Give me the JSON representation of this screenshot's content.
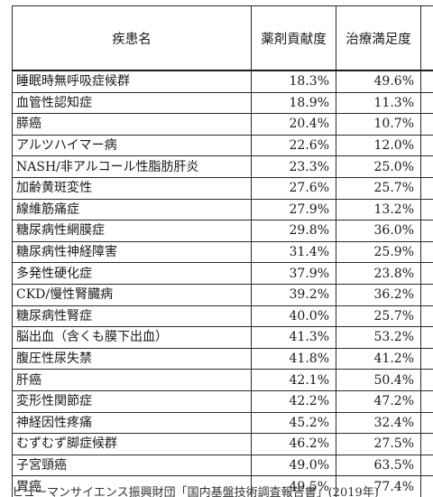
{
  "table": {
    "headers": [
      "疾患名",
      "薬剤貢献度",
      "治療満足度"
    ],
    "rows": [
      {
        "name": "睡眠時無呼吸症候群",
        "contribution": "18.3%",
        "satisfaction": "49.6%"
      },
      {
        "name": "血管性認知症",
        "contribution": "18.9%",
        "satisfaction": "11.3%"
      },
      {
        "name": "膵癌",
        "contribution": "20.4%",
        "satisfaction": "10.7%"
      },
      {
        "name": "アルツハイマー病",
        "contribution": "22.6%",
        "satisfaction": "12.0%"
      },
      {
        "name": "NASH/非アルコール性脂肪肝炎",
        "contribution": "23.3%",
        "satisfaction": "25.0%"
      },
      {
        "name": "加齢黄斑変性",
        "contribution": "27.6%",
        "satisfaction": "25.7%"
      },
      {
        "name": "線維筋痛症",
        "contribution": "27.9%",
        "satisfaction": "13.2%"
      },
      {
        "name": "糖尿病性網膜症",
        "contribution": "29.8%",
        "satisfaction": "36.0%"
      },
      {
        "name": "糖尿病性神経障害",
        "contribution": "31.4%",
        "satisfaction": "25.9%"
      },
      {
        "name": "多発性硬化症",
        "contribution": "37.9%",
        "satisfaction": "23.8%"
      },
      {
        "name": "CKD/慢性腎臓病",
        "contribution": "39.2%",
        "satisfaction": "36.2%"
      },
      {
        "name": "糖尿病性腎症",
        "contribution": "40.0%",
        "satisfaction": "25.7%"
      },
      {
        "name": "脳出血（含くも膜下出血）",
        "contribution": "41.3%",
        "satisfaction": "53.2%"
      },
      {
        "name": "腹圧性尿失禁",
        "contribution": "41.8%",
        "satisfaction": "41.2%"
      },
      {
        "name": "肝癌",
        "contribution": "42.1%",
        "satisfaction": "50.4%"
      },
      {
        "name": "変形性関節症",
        "contribution": "42.2%",
        "satisfaction": "47.2%"
      },
      {
        "name": "神経因性疼痛",
        "contribution": "45.2%",
        "satisfaction": "32.4%"
      },
      {
        "name": "むずむず脚症候群",
        "contribution": "46.2%",
        "satisfaction": "27.5%"
      },
      {
        "name": "子宮頸癌",
        "contribution": "49.0%",
        "satisfaction": "63.5%"
      },
      {
        "name": "胃癌",
        "contribution": "49.5%",
        "satisfaction": "77.4%"
      }
    ]
  },
  "footnote": "ヒューマンサイエンス振興財団「国内基盤技術調査報告書」(2019年)"
}
